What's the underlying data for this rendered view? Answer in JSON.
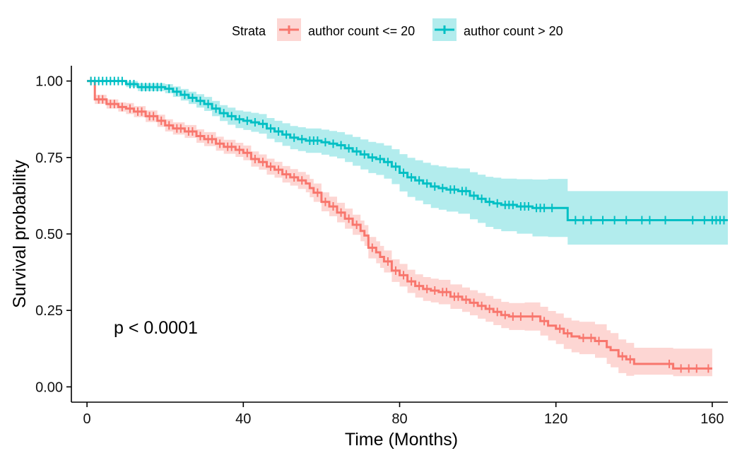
{
  "chart_data": {
    "type": "line",
    "subtype": "kaplan-meier",
    "title": "",
    "xlabel": "Time (Months)",
    "ylabel": "Survival probability",
    "xlim": [
      -4,
      164
    ],
    "ylim": [
      -0.05,
      1.05
    ],
    "xticks": [
      0,
      40,
      80,
      120,
      160
    ],
    "xtick_labels": [
      "0",
      "40",
      "80",
      "120",
      "160"
    ],
    "yticks": [
      0,
      0.25,
      0.5,
      0.75,
      1.0
    ],
    "ytick_labels": [
      "0.00",
      "0.25",
      "0.50",
      "0.75",
      "1.00"
    ],
    "grid": false,
    "legend": {
      "title": "Strata",
      "position": "top"
    },
    "annotation": "p < 0.0001",
    "series": [
      {
        "name": "author count <= 20",
        "color": "#F8766D",
        "fill": "#F8766D",
        "x": [
          0,
          2,
          5,
          8,
          10,
          12,
          15,
          18,
          20,
          22,
          25,
          28,
          30,
          33,
          35,
          38,
          40,
          42,
          44,
          46,
          48,
          50,
          52,
          54,
          56,
          57,
          58,
          60,
          62,
          64,
          66,
          68,
          70,
          71,
          72,
          74,
          75,
          76,
          78,
          80,
          82,
          84,
          86,
          88,
          90,
          93,
          96,
          98,
          100,
          102,
          104,
          106,
          108,
          112,
          116,
          118,
          120,
          122,
          124,
          126,
          130,
          133,
          134,
          136,
          138,
          140,
          145,
          150,
          155,
          160
        ],
        "y": [
          1.0,
          0.94,
          0.925,
          0.915,
          0.91,
          0.9,
          0.885,
          0.87,
          0.855,
          0.845,
          0.835,
          0.82,
          0.81,
          0.795,
          0.785,
          0.775,
          0.765,
          0.745,
          0.735,
          0.72,
          0.71,
          0.695,
          0.685,
          0.675,
          0.665,
          0.65,
          0.635,
          0.605,
          0.59,
          0.57,
          0.55,
          0.53,
          0.51,
          0.495,
          0.455,
          0.44,
          0.425,
          0.41,
          0.38,
          0.365,
          0.345,
          0.33,
          0.32,
          0.315,
          0.31,
          0.295,
          0.285,
          0.275,
          0.265,
          0.255,
          0.245,
          0.235,
          0.23,
          0.23,
          0.215,
          0.2,
          0.19,
          0.175,
          0.165,
          0.16,
          0.15,
          0.13,
          0.12,
          0.1,
          0.09,
          0.075,
          0.075,
          0.06,
          0.06,
          0.06
        ],
        "lower": [
          1.0,
          0.925,
          0.91,
          0.9,
          0.892,
          0.882,
          0.866,
          0.85,
          0.835,
          0.825,
          0.814,
          0.798,
          0.787,
          0.772,
          0.762,
          0.752,
          0.741,
          0.72,
          0.71,
          0.694,
          0.684,
          0.668,
          0.658,
          0.647,
          0.636,
          0.62,
          0.605,
          0.574,
          0.558,
          0.538,
          0.517,
          0.497,
          0.476,
          0.461,
          0.42,
          0.404,
          0.389,
          0.374,
          0.343,
          0.328,
          0.307,
          0.292,
          0.281,
          0.276,
          0.27,
          0.255,
          0.245,
          0.234,
          0.223,
          0.213,
          0.202,
          0.192,
          0.186,
          0.184,
          0.168,
          0.152,
          0.14,
          0.124,
          0.113,
          0.107,
          0.095,
          0.075,
          0.064,
          0.045,
          0.036,
          0.04,
          0.04,
          0.035,
          0.035,
          0.035
        ],
        "upper": [
          1.0,
          0.955,
          0.94,
          0.93,
          0.928,
          0.918,
          0.904,
          0.89,
          0.875,
          0.865,
          0.856,
          0.842,
          0.833,
          0.818,
          0.808,
          0.798,
          0.789,
          0.77,
          0.76,
          0.746,
          0.736,
          0.722,
          0.712,
          0.703,
          0.694,
          0.68,
          0.665,
          0.636,
          0.622,
          0.602,
          0.583,
          0.563,
          0.544,
          0.529,
          0.49,
          0.476,
          0.461,
          0.446,
          0.417,
          0.402,
          0.383,
          0.368,
          0.359,
          0.354,
          0.35,
          0.335,
          0.325,
          0.316,
          0.307,
          0.297,
          0.288,
          0.278,
          0.274,
          0.276,
          0.262,
          0.248,
          0.24,
          0.226,
          0.217,
          0.213,
          0.205,
          0.185,
          0.176,
          0.155,
          0.144,
          0.128,
          0.128,
          0.125,
          0.125,
          0.125
        ],
        "censor_x": [
          1,
          3,
          4,
          6,
          7,
          9,
          11,
          13,
          14,
          16,
          17,
          19,
          21,
          23,
          24,
          26,
          27,
          29,
          31,
          32,
          34,
          36,
          37,
          39,
          41,
          43,
          45,
          47,
          49,
          51,
          53,
          55,
          59,
          61,
          63,
          65,
          67,
          69,
          73,
          77,
          79,
          81,
          83,
          85,
          87,
          89,
          91,
          92,
          94,
          95,
          97,
          99,
          101,
          103,
          105,
          107,
          109,
          111,
          114,
          117,
          121,
          123,
          127,
          129,
          131,
          137,
          139,
          149,
          152,
          154,
          156,
          159
        ]
      },
      {
        "name": "author count > 20",
        "color": "#00BFC4",
        "fill": "#00BFC4",
        "x": [
          0,
          10,
          13,
          20,
          22,
          24,
          26,
          28,
          30,
          32,
          34,
          36,
          38,
          40,
          42,
          44,
          46,
          48,
          50,
          52,
          54,
          56,
          60,
          62,
          64,
          66,
          68,
          70,
          72,
          74,
          76,
          78,
          80,
          82,
          84,
          86,
          88,
          90,
          92,
          95,
          98,
          100,
          102,
          104,
          106,
          110,
          114,
          118,
          123,
          164
        ],
        "y": [
          1.0,
          0.99,
          0.98,
          0.975,
          0.965,
          0.955,
          0.945,
          0.935,
          0.925,
          0.91,
          0.895,
          0.885,
          0.875,
          0.87,
          0.865,
          0.86,
          0.845,
          0.835,
          0.825,
          0.815,
          0.81,
          0.805,
          0.8,
          0.795,
          0.79,
          0.78,
          0.77,
          0.76,
          0.75,
          0.745,
          0.735,
          0.72,
          0.7,
          0.685,
          0.675,
          0.665,
          0.655,
          0.65,
          0.645,
          0.64,
          0.625,
          0.615,
          0.605,
          0.6,
          0.595,
          0.59,
          0.585,
          0.585,
          0.545,
          0.545
        ],
        "lower": [
          1.0,
          0.98,
          0.967,
          0.96,
          0.948,
          0.936,
          0.925,
          0.913,
          0.902,
          0.885,
          0.869,
          0.857,
          0.846,
          0.84,
          0.834,
          0.828,
          0.811,
          0.8,
          0.788,
          0.777,
          0.771,
          0.765,
          0.759,
          0.753,
          0.747,
          0.735,
          0.723,
          0.711,
          0.699,
          0.693,
          0.681,
          0.663,
          0.639,
          0.621,
          0.609,
          0.597,
          0.585,
          0.579,
          0.573,
          0.566,
          0.548,
          0.536,
          0.523,
          0.516,
          0.509,
          0.501,
          0.492,
          0.49,
          0.465,
          0.465
        ],
        "upper": [
          1.0,
          1.0,
          0.993,
          0.99,
          0.982,
          0.974,
          0.965,
          0.957,
          0.948,
          0.935,
          0.921,
          0.913,
          0.904,
          0.9,
          0.896,
          0.892,
          0.879,
          0.87,
          0.862,
          0.853,
          0.849,
          0.845,
          0.841,
          0.837,
          0.833,
          0.825,
          0.817,
          0.809,
          0.801,
          0.797,
          0.789,
          0.777,
          0.761,
          0.749,
          0.741,
          0.733,
          0.725,
          0.721,
          0.717,
          0.714,
          0.702,
          0.694,
          0.687,
          0.684,
          0.681,
          0.679,
          0.678,
          0.68,
          0.64,
          0.64
        ],
        "censor_x": [
          1,
          2,
          3,
          4,
          5,
          6,
          7,
          8,
          9,
          11,
          12,
          14,
          15,
          16,
          17,
          18,
          19,
          21,
          23,
          25,
          27,
          29,
          31,
          33,
          35,
          37,
          39,
          41,
          43,
          45,
          47,
          49,
          51,
          53,
          55,
          57,
          58,
          59,
          61,
          63,
          65,
          67,
          69,
          71,
          73,
          75,
          77,
          79,
          81,
          83,
          85,
          87,
          89,
          91,
          93,
          94,
          96,
          97,
          99,
          101,
          103,
          105,
          107,
          108,
          109,
          111,
          112,
          113,
          115,
          116,
          117,
          119,
          125,
          127,
          129,
          132,
          135,
          138,
          142,
          144,
          148,
          155,
          158,
          160,
          161,
          162,
          163
        ]
      }
    ]
  }
}
